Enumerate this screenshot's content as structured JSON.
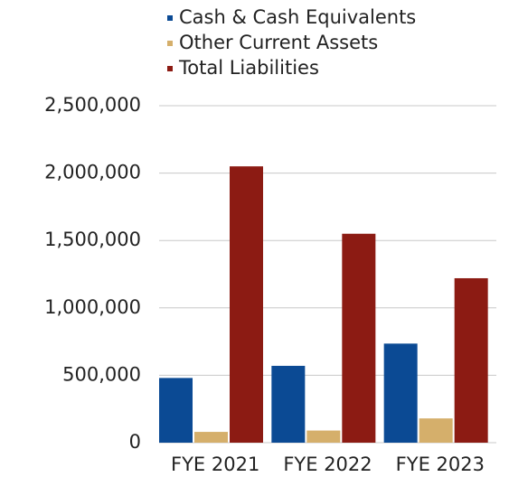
{
  "chart_data": {
    "type": "bar",
    "categories": [
      "FYE 2021",
      "FYE 2022",
      "FYE 2023"
    ],
    "series": [
      {
        "name": "Cash & Cash Equivalents",
        "color": "#0b4a94",
        "values": [
          480000,
          570000,
          735000
        ]
      },
      {
        "name": "Other Current Assets",
        "color": "#d5af6b",
        "values": [
          80000,
          90000,
          180000
        ]
      },
      {
        "name": "Total Liabilities",
        "color": "#8c1b13",
        "values": [
          2050000,
          1550000,
          1220000
        ]
      }
    ],
    "ylim": [
      0,
      2500000
    ],
    "yticks": [
      0,
      {
        "value": 500000,
        "label": "500,000"
      },
      {
        "value": 1000000,
        "label": "1,000,000"
      },
      {
        "value": 1500000,
        "label": "1,500,000"
      },
      {
        "value": 2000000,
        "label": "2,000,000"
      },
      {
        "value": 2500000,
        "label": "2,500,000"
      }
    ],
    "grid": true,
    "legend": "top"
  }
}
